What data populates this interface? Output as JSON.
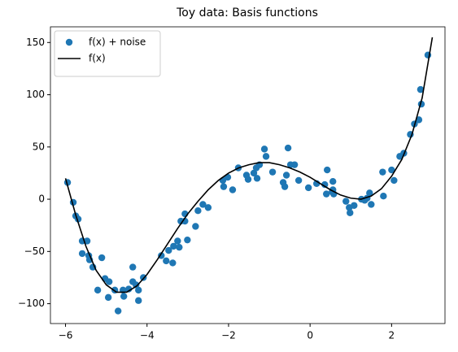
{
  "chart_data": {
    "type": "scatter",
    "title": "Toy data: Basis functions",
    "xlim": [
      -6.37,
      3.31
    ],
    "ylim": [
      -119,
      165
    ],
    "xticks": [
      {
        "value": -6,
        "label": "−6"
      },
      {
        "value": -4,
        "label": "−4"
      },
      {
        "value": -2,
        "label": "−2"
      },
      0,
      2
    ],
    "yticks": [
      {
        "value": -100,
        "label": "−100"
      },
      {
        "value": -50,
        "label": "−50"
      },
      0,
      50,
      100,
      150
    ],
    "legend": "upper left",
    "series": [
      {
        "name": "f(x) + noise",
        "type": "scatter",
        "color": "#1f77b4",
        "x": [
          -5.95,
          -5.81,
          -5.75,
          -5.69,
          -5.59,
          -5.47,
          -5.59,
          -5.43,
          -5.41,
          -5.33,
          -5.21,
          -5.11,
          -5.03,
          -4.93,
          -4.95,
          -4.79,
          -4.71,
          -4.59,
          -4.57,
          -4.45,
          -4.35,
          -4.35,
          -4.27,
          -4.21,
          -4.21,
          -4.09,
          -3.65,
          -3.53,
          -3.47,
          -3.37,
          -3.35,
          -3.25,
          -3.21,
          -3.17,
          -3.07,
          -3.07,
          -3.01,
          -2.81,
          -2.75,
          -2.63,
          -2.5,
          -2.14,
          -2.12,
          -2.02,
          -1.9,
          -1.76,
          -1.56,
          -1.52,
          -1.38,
          -1.32,
          -1.3,
          -1.24,
          -1.12,
          -1.08,
          -0.92,
          -0.66,
          -0.62,
          -0.58,
          -0.54,
          -0.48,
          -0.38,
          -0.28,
          -0.04,
          0.16,
          0.36,
          0.4,
          0.42,
          0.54,
          0.56,
          0.56,
          0.58,
          0.88,
          0.96,
          0.98,
          1.08,
          1.26,
          1.34,
          1.4,
          1.46,
          1.5,
          1.78,
          1.8,
          2.0,
          2.06,
          2.2,
          2.3,
          2.46,
          2.56,
          2.67,
          2.71,
          2.73,
          2.89
        ],
        "y": [
          16,
          -3,
          -16,
          -19,
          -40,
          -40,
          -52,
          -54,
          -58,
          -65,
          -87,
          -56,
          -76,
          -79,
          -94,
          -87,
          -107,
          -87,
          -93,
          -86,
          -79,
          -65,
          -82,
          -87,
          -97,
          -75,
          -54,
          -59,
          -49,
          -61,
          -45,
          -40,
          -46,
          -21,
          -14,
          -21,
          -39,
          -26,
          -11,
          -5,
          -8,
          18,
          12,
          21,
          9,
          30,
          23,
          19,
          25,
          30,
          20,
          33,
          48,
          41,
          26,
          16,
          12,
          23,
          49,
          33,
          33,
          18,
          11,
          15,
          14,
          5,
          28,
          7,
          17,
          9,
          5,
          -2,
          -8,
          -13,
          -6,
          0,
          -1,
          1,
          6,
          -5,
          26,
          3,
          28,
          18,
          41,
          44,
          62,
          72,
          76,
          105,
          91,
          138
        ]
      },
      {
        "name": "f(x)",
        "type": "line",
        "color": "#000000",
        "x": [
          -6,
          -5.75,
          -5.5,
          -5.25,
          -5,
          -4.75,
          -4.5,
          -4.25,
          -4,
          -3.75,
          -3.5,
          -3.25,
          -3,
          -2.75,
          -2.5,
          -2.25,
          -2,
          -1.75,
          -1.5,
          -1.25,
          -1,
          -0.75,
          -0.5,
          -0.25,
          0,
          0.25,
          0.5,
          0.75,
          1,
          1.25,
          1.5,
          1.75,
          2,
          2.25,
          2.5,
          2.75,
          3
        ],
        "y": [
          20,
          -15,
          -45,
          -68,
          -82,
          -89,
          -89,
          -83,
          -72,
          -58,
          -43,
          -28,
          -14,
          -2,
          9,
          18,
          25,
          30,
          33,
          35,
          35,
          33,
          30,
          26,
          21,
          15,
          9,
          4,
          1,
          0,
          3,
          10,
          22,
          38,
          62,
          97,
          155
        ]
      }
    ]
  }
}
